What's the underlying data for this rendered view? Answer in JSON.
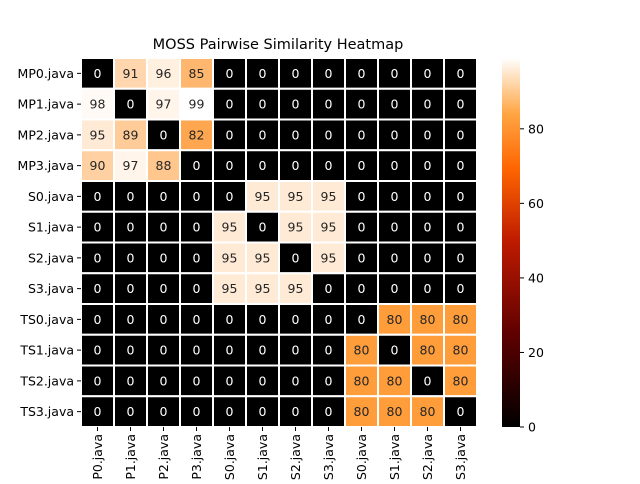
{
  "chart_data": {
    "type": "heatmap",
    "title": "MOSS Pairwise Similarity Heatmap",
    "xlabel": "",
    "ylabel": "",
    "row_labels": [
      "MP0.java",
      "MP1.java",
      "MP2.java",
      "MP3.java",
      "S0.java",
      "S1.java",
      "S2.java",
      "S3.java",
      "TS0.java",
      "TS1.java",
      "TS2.java",
      "TS3.java"
    ],
    "col_labels": [
      "MP0.java",
      "MP1.java",
      "MP2.java",
      "MP3.java",
      "S0.java",
      "S1.java",
      "S2.java",
      "S3.java",
      "TS0.java",
      "TS1.java",
      "TS2.java",
      "TS3.java"
    ],
    "values": [
      [
        0,
        91,
        96,
        85,
        0,
        0,
        0,
        0,
        0,
        0,
        0,
        0
      ],
      [
        98,
        0,
        97,
        99,
        0,
        0,
        0,
        0,
        0,
        0,
        0,
        0
      ],
      [
        95,
        89,
        0,
        82,
        0,
        0,
        0,
        0,
        0,
        0,
        0,
        0
      ],
      [
        90,
        97,
        88,
        0,
        0,
        0,
        0,
        0,
        0,
        0,
        0,
        0
      ],
      [
        0,
        0,
        0,
        0,
        0,
        95,
        95,
        95,
        0,
        0,
        0,
        0
      ],
      [
        0,
        0,
        0,
        0,
        95,
        0,
        95,
        95,
        0,
        0,
        0,
        0
      ],
      [
        0,
        0,
        0,
        0,
        95,
        95,
        0,
        95,
        0,
        0,
        0,
        0
      ],
      [
        0,
        0,
        0,
        0,
        95,
        95,
        95,
        0,
        0,
        0,
        0,
        0
      ],
      [
        0,
        0,
        0,
        0,
        0,
        0,
        0,
        0,
        0,
        80,
        80,
        80
      ],
      [
        0,
        0,
        0,
        0,
        0,
        0,
        0,
        0,
        80,
        0,
        80,
        80
      ],
      [
        0,
        0,
        0,
        0,
        0,
        0,
        0,
        0,
        80,
        80,
        0,
        80
      ],
      [
        0,
        0,
        0,
        0,
        0,
        0,
        0,
        0,
        80,
        80,
        80,
        0
      ]
    ],
    "vmin": 0,
    "vmax": 99,
    "colormap": "gist_heat",
    "colorbar_ticks": [
      0,
      20,
      40,
      60,
      80
    ],
    "annotations": true,
    "cell_border_color": "#ffffff",
    "grid": false
  }
}
